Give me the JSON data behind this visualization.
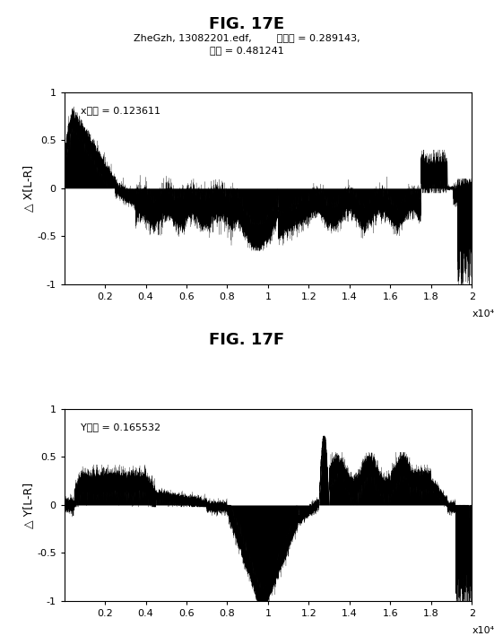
{
  "fig_title_E": "FIG. 17E",
  "fig_title_F": "FIG. 17F",
  "subtitle_line1": "ZheGzh, 13082201.edf,        全分散 = 0.289143,",
  "subtitle_line2": "相関 = 0.481241",
  "annotation_E": "x分散 = 0.123611",
  "annotation_F": "Y分散 = 0.165532",
  "ylabel_E": "△ X[L-R]",
  "ylabel_F": "△ Y[L-R]",
  "xlabel_sci": "x10⁴",
  "ylim": [
    -1,
    1
  ],
  "xlim": [
    0,
    20000
  ],
  "xticks": [
    2000,
    4000,
    6000,
    8000,
    10000,
    12000,
    14000,
    16000,
    18000,
    20000
  ],
  "xtick_labels": [
    "0.2",
    "0.4",
    "0.6",
    "0.8",
    "1",
    "1.2",
    "1.4",
    "1.6",
    "1.8",
    "2"
  ],
  "yticks": [
    -1,
    -0.5,
    0,
    0.5,
    1
  ],
  "background_color": "#ffffff",
  "signal_color": "#000000",
  "n_points": 20000
}
